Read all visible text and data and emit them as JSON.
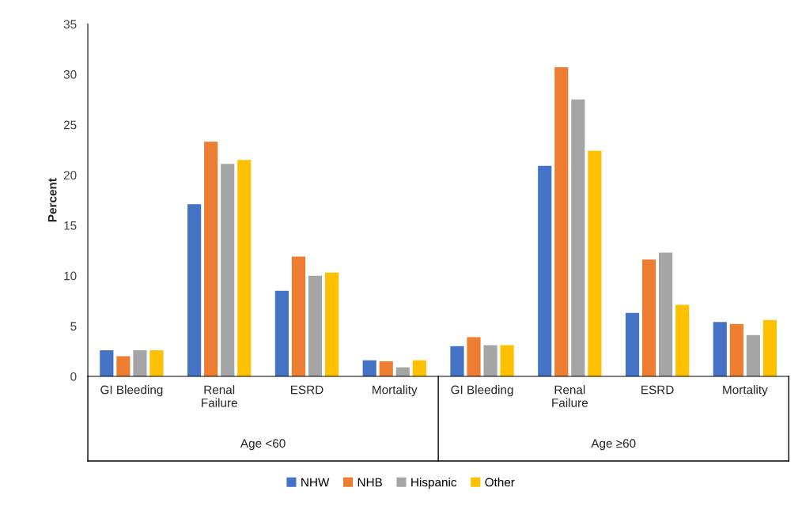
{
  "chart_data": {
    "type": "bar",
    "ylabel": "Percent",
    "categories": [
      "GI Bleeding",
      "Renal\nFailure",
      "ESRD",
      "Mortality",
      "GI Bleeding",
      "Renal\nFailure",
      "ESRD",
      "Mortality"
    ],
    "annotations": [
      "Age <60",
      "Age ≥60"
    ],
    "series": [
      {
        "name": "NHW",
        "color": "#4472c4",
        "values": [
          2.6,
          17.1,
          8.5,
          1.6,
          3.0,
          20.9,
          6.3,
          5.4
        ]
      },
      {
        "name": "NHB",
        "color": "#ed7d31",
        "values": [
          2.0,
          23.3,
          11.9,
          1.5,
          3.9,
          30.7,
          11.6,
          5.2
        ]
      },
      {
        "name": "Hispanic",
        "color": "#a5a5a5",
        "values": [
          2.6,
          21.1,
          10.0,
          0.9,
          3.1,
          27.5,
          12.3,
          4.1
        ]
      },
      {
        "name": "Other",
        "color": "#ffc000",
        "values": [
          2.6,
          21.5,
          10.3,
          1.6,
          3.1,
          22.4,
          7.1,
          5.6
        ]
      }
    ],
    "ylim": [
      0,
      35
    ],
    "yticks": [
      0,
      5,
      10,
      15,
      20,
      25,
      30,
      35
    ],
    "grid": false,
    "legend": "bottom"
  }
}
